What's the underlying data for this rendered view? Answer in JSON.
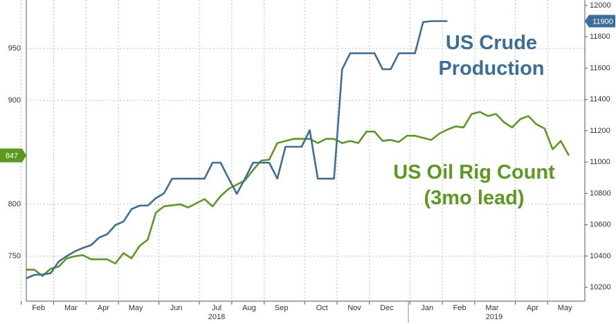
{
  "chart_data": {
    "type": "line",
    "categories": [
      null,
      "Feb",
      null,
      null,
      null,
      "Mar",
      null,
      null,
      null,
      "Apr",
      null,
      null,
      null,
      "May",
      null,
      null,
      null,
      null,
      "Jun",
      null,
      null,
      null,
      null,
      "Jul",
      null,
      null,
      null,
      "Aug",
      null,
      null,
      null,
      "Sep",
      null,
      null,
      null,
      null,
      "Oct",
      null,
      null,
      null,
      "Nov",
      null,
      null,
      null,
      "Dec",
      null,
      null,
      null,
      null,
      "Jan",
      null,
      null,
      null,
      "Feb",
      null,
      null,
      null,
      "Mar",
      null,
      null,
      null,
      null,
      "Apr",
      null,
      null,
      null,
      "May",
      null
    ],
    "year_labels": [
      "2018",
      "2019"
    ],
    "series": [
      {
        "name": "US Oil Rig Count (3mo lead)",
        "color": "#5b9a1f",
        "axis": "y",
        "values": [
          737,
          737,
          731,
          738,
          740,
          748,
          750,
          751,
          747,
          747,
          747,
          743,
          753,
          748,
          760,
          766,
          792,
          798,
          799,
          800,
          797,
          801,
          805,
          798,
          808,
          815,
          819,
          823,
          833,
          842,
          843,
          859,
          861,
          863,
          863,
          863,
          859,
          863,
          863,
          859,
          861,
          859,
          870,
          870,
          861,
          862,
          860,
          866,
          866,
          864,
          862,
          868,
          872,
          875,
          874,
          887,
          889,
          885,
          887,
          879,
          874,
          882,
          885,
          877,
          873,
          853,
          861,
          847
        ]
      },
      {
        "name": "US Crude Production",
        "color": "#3b6e9b",
        "axis": "y2",
        "values": [
          10258,
          10280,
          10282,
          10290,
          10365,
          10400,
          10430,
          10452,
          10470,
          10518,
          10540,
          10598,
          10620,
          10700,
          10722,
          10722,
          10770,
          10800,
          10894,
          10894,
          10894,
          10894,
          10894,
          10996,
          10996,
          10894,
          10797,
          10894,
          10996,
          10996,
          10996,
          10894,
          11098,
          11098,
          11098,
          11204,
          10894,
          10894,
          10894,
          11593,
          11695,
          11695,
          11695,
          11695,
          11593,
          11593,
          11695,
          11695,
          11695,
          11894,
          11900,
          11900,
          11900,
          null,
          null,
          null,
          null,
          null,
          null,
          null,
          null,
          null,
          null,
          null,
          null,
          null,
          null,
          null
        ]
      }
    ],
    "ylim": [
      706.7,
      996.7
    ],
    "yticks": [
      750,
      800,
      900,
      950
    ],
    "y2lim": [
      10112,
      12035
    ],
    "y2ticks": [
      10200,
      10400,
      10600,
      10800,
      11000,
      11200,
      11400,
      11600,
      11800,
      12000
    ],
    "grid": true
  }
}
